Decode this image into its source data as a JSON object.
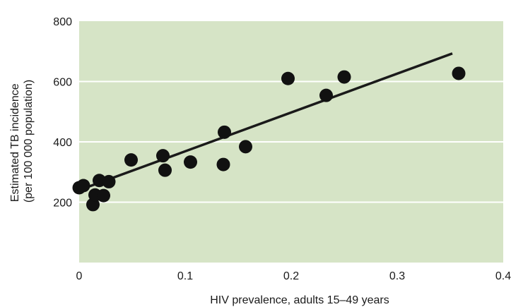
{
  "chart_data": {
    "type": "scatter",
    "title": "",
    "xlabel": "HIV prevalence, adults 15–49 years",
    "ylabel_lines": [
      "Estimated TB incidence",
      "(per 100 000 population)"
    ],
    "xlim": [
      0,
      0.4
    ],
    "ylim": [
      0,
      800
    ],
    "xticks": [
      0,
      0.1,
      0.2,
      0.3,
      0.4
    ],
    "xtick_labels": [
      "0",
      "0.1",
      "0.2",
      "0.3",
      "0.4"
    ],
    "yticks": [
      200,
      400,
      600,
      800
    ],
    "ytick_labels": [
      "200",
      "400",
      "600",
      "800"
    ],
    "grid": "horizontal",
    "colors": {
      "plot_bg": "#d6e4c6",
      "grid": "#ffffff",
      "points": "#111111",
      "line": "#1a1a1a"
    },
    "points": [
      {
        "x": 0.0,
        "y": 248
      },
      {
        "x": 0.004,
        "y": 255
      },
      {
        "x": 0.013,
        "y": 192
      },
      {
        "x": 0.015,
        "y": 224
      },
      {
        "x": 0.019,
        "y": 272
      },
      {
        "x": 0.023,
        "y": 222
      },
      {
        "x": 0.028,
        "y": 268
      },
      {
        "x": 0.049,
        "y": 340
      },
      {
        "x": 0.079,
        "y": 354
      },
      {
        "x": 0.081,
        "y": 306
      },
      {
        "x": 0.105,
        "y": 333
      },
      {
        "x": 0.136,
        "y": 325
      },
      {
        "x": 0.137,
        "y": 432
      },
      {
        "x": 0.157,
        "y": 384
      },
      {
        "x": 0.197,
        "y": 610
      },
      {
        "x": 0.233,
        "y": 554
      },
      {
        "x": 0.25,
        "y": 615
      },
      {
        "x": 0.358,
        "y": 627
      }
    ],
    "trend_line": {
      "x": [
        0.0,
        0.352
      ],
      "y": [
        240,
        693
      ]
    }
  }
}
